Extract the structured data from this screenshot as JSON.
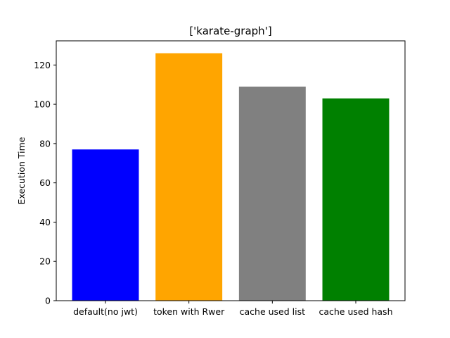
{
  "chart_data": {
    "type": "bar",
    "title": "['karate-graph']",
    "xlabel": "",
    "ylabel": "Execution Time",
    "categories": [
      "default(no jwt)",
      "token with Rwer",
      "cache used list",
      "cache used hash"
    ],
    "values": [
      77,
      126,
      109,
      103
    ],
    "colors": [
      "#0000ff",
      "#ffa500",
      "#808080",
      "#008000"
    ],
    "ylim": [
      0,
      132.3
    ],
    "yticks": [
      0,
      20,
      40,
      60,
      80,
      100,
      120
    ],
    "grid": false,
    "legend": "none"
  }
}
